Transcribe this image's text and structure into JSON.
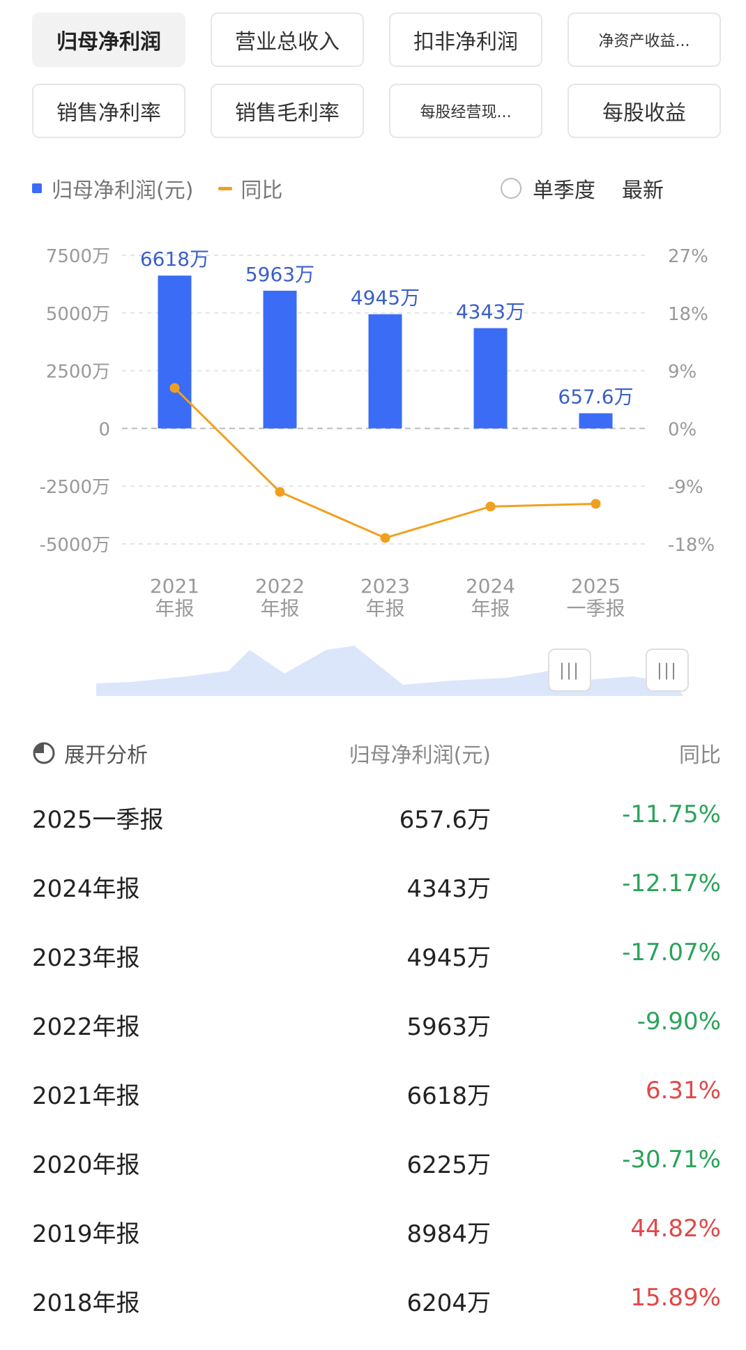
{
  "tabs": [
    {
      "label": "归母净利润",
      "active": true
    },
    {
      "label": "营业总收入"
    },
    {
      "label": "扣非净利润"
    },
    {
      "label": "净资产收益..."
    },
    {
      "label": "销售净利率"
    },
    {
      "label": "销售毛利率"
    },
    {
      "label": "每股经营现..."
    },
    {
      "label": "每股收益"
    }
  ],
  "legend": {
    "bar": "归母净利润(元)",
    "line": "同比"
  },
  "toggle": {
    "single_quarter": "单季度",
    "latest": "最新"
  },
  "colors": {
    "bar": "#3b6cf6",
    "line": "#f0a020",
    "positive": "#e04848",
    "negative": "#2aa35a",
    "brush": "#dbe6fb"
  },
  "chart_data": {
    "type": "bar",
    "categories": [
      "2021\n年报",
      "2022\n年报",
      "2023\n年报",
      "2024\n年报",
      "2025\n一季报"
    ],
    "series": [
      {
        "name": "归母净利润(元)",
        "type": "bar",
        "axis": "left",
        "values": [
          6618,
          5963,
          4945,
          4343,
          657.6
        ],
        "labels": [
          "6618万",
          "5963万",
          "4945万",
          "4343万",
          "657.6万"
        ]
      },
      {
        "name": "同比",
        "type": "line",
        "axis": "right",
        "values": [
          6.31,
          -9.9,
          -17.07,
          -12.17,
          -11.75
        ]
      }
    ],
    "y_left": {
      "ticks": [
        "7500万",
        "5000万",
        "2500万",
        "0",
        "-2500万",
        "-5000万"
      ],
      "values": [
        7500,
        5000,
        2500,
        0,
        -2500,
        -5000
      ]
    },
    "y_right": {
      "ticks": [
        "27%",
        "18%",
        "9%",
        "0%",
        "-9%",
        "-18%"
      ],
      "values": [
        27,
        18,
        9,
        0,
        -9,
        -18
      ]
    },
    "grid": true
  },
  "brush": {
    "handle_glyph": "|||"
  },
  "table": {
    "headers": {
      "expand": "展开分析",
      "value": "归母净利润(元)",
      "yoy": "同比"
    },
    "rows": [
      {
        "period": "2025一季报",
        "value": "657.6万",
        "yoy": "-11.75%"
      },
      {
        "period": "2024年报",
        "value": "4343万",
        "yoy": "-12.17%"
      },
      {
        "period": "2023年报",
        "value": "4945万",
        "yoy": "-17.07%"
      },
      {
        "period": "2022年报",
        "value": "5963万",
        "yoy": "-9.90%"
      },
      {
        "period": "2021年报",
        "value": "6618万",
        "yoy": "6.31%"
      },
      {
        "period": "2020年报",
        "value": "6225万",
        "yoy": "-30.71%"
      },
      {
        "period": "2019年报",
        "value": "8984万",
        "yoy": "44.82%"
      },
      {
        "period": "2018年报",
        "value": "6204万",
        "yoy": "15.89%"
      }
    ]
  }
}
